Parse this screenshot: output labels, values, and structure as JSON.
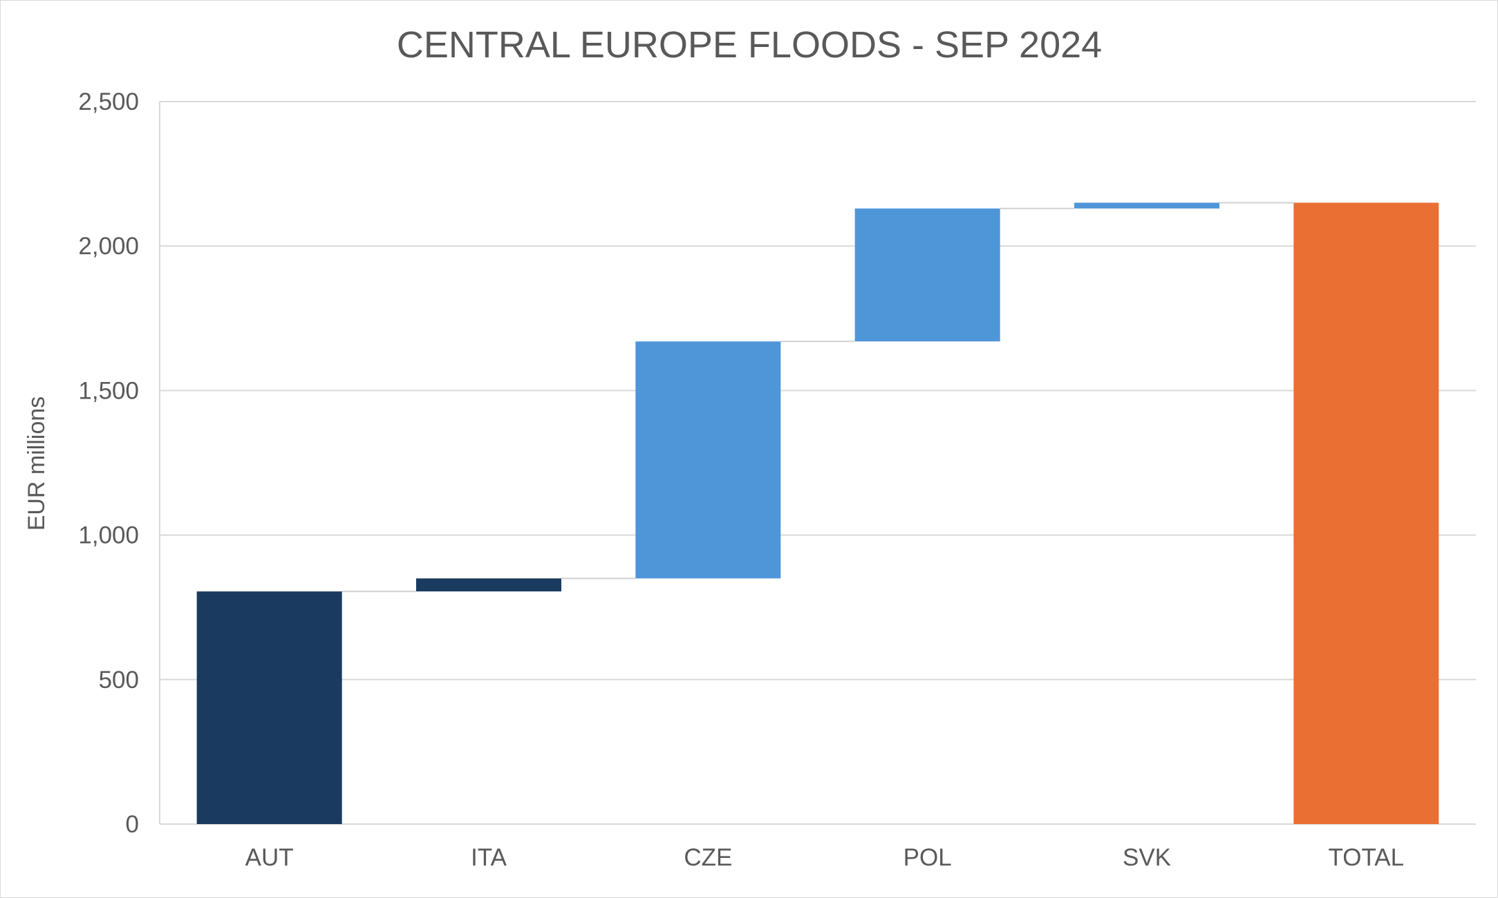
{
  "chart_data": {
    "type": "waterfall",
    "title": "CENTRAL EUROPE FLOODS - SEP 2024",
    "xlabel": "",
    "ylabel": "EUR millions",
    "ylim": [
      0,
      2500
    ],
    "y_ticks": [
      0,
      500,
      1000,
      1500,
      2000,
      2500
    ],
    "y_tick_labels": [
      "0",
      "500",
      "1,000",
      "1,500",
      "2,000",
      "2,500"
    ],
    "grid": true,
    "legend": "none",
    "categories": [
      "AUT",
      "ITA",
      "CZE",
      "POL",
      "SVK",
      "TOTAL"
    ],
    "values": [
      805,
      45,
      820,
      460,
      20,
      2150
    ],
    "bar_kind": [
      "increase",
      "increase",
      "increase",
      "increase",
      "increase",
      "total"
    ],
    "colors": {
      "AUT": "#1a3a5f",
      "ITA": "#1a3a5f",
      "CZE": "#4f96d9",
      "POL": "#4f96d9",
      "SVK": "#4f96d9",
      "TOTAL": "#e97032",
      "gridline": "#d9d9d9",
      "connector": "#d0d0d0",
      "text": "#595959"
    }
  }
}
